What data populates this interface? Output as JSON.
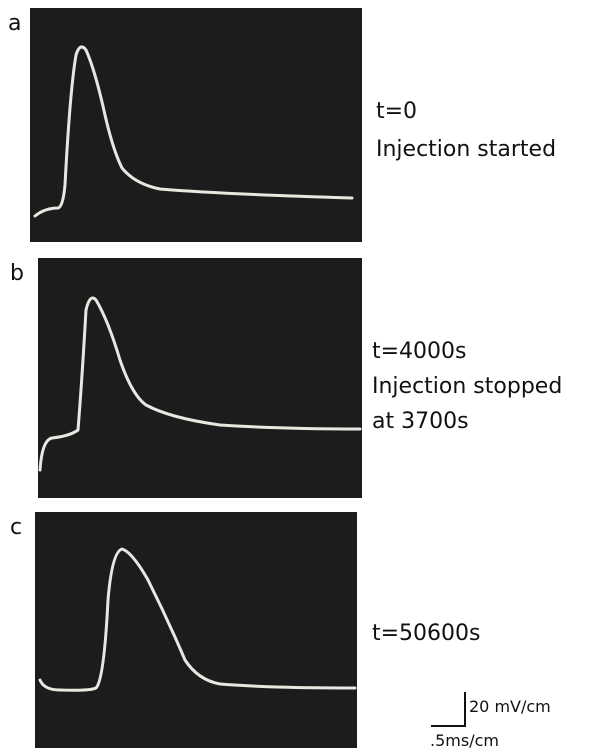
{
  "panels": [
    {
      "label": "a",
      "annotation": [
        "t=0",
        "Injection started"
      ]
    },
    {
      "label": "b",
      "annotation": [
        "t=4000s",
        "Injection stopped",
        "at 3700s"
      ]
    },
    {
      "label": "c",
      "annotation": [
        "t=50600s"
      ]
    }
  ],
  "scale_bar": {
    "vertical": "20 mV/cm",
    "horizontal": ".5ms/cm"
  }
}
